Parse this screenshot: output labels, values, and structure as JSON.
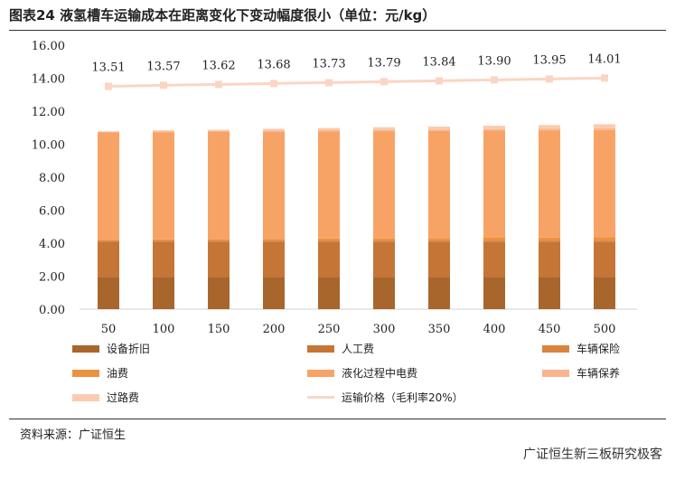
{
  "title": "图表24 液氢槽车运输成本在距离变化下变动幅度很小（单位：元/kg）",
  "source": "资料来源：广证恒生",
  "watermark": "广证恒生新三板研究极客",
  "chart_data": {
    "type": "stacked-bar+line",
    "categories": [
      "50",
      "100",
      "150",
      "200",
      "250",
      "300",
      "350",
      "400",
      "450",
      "500"
    ],
    "ylim": [
      0,
      16
    ],
    "yticks": [
      "0.00",
      "2.00",
      "4.00",
      "6.00",
      "8.00",
      "10.00",
      "12.00",
      "14.00",
      "16.00"
    ],
    "legend_position": "bottom",
    "series": [
      {
        "name": "设备折旧",
        "type": "bar",
        "color": "#A9662C",
        "values": [
          1.95,
          1.95,
          1.95,
          1.95,
          1.95,
          1.95,
          1.95,
          1.95,
          1.95,
          1.95
        ]
      },
      {
        "name": "人工费",
        "type": "bar",
        "color": "#C57535",
        "values": [
          2.15,
          2.15,
          2.15,
          2.15,
          2.15,
          2.15,
          2.15,
          2.15,
          2.15,
          2.15
        ]
      },
      {
        "name": "车辆保险",
        "type": "bar",
        "color": "#D9843E",
        "values": [
          0.06,
          0.06,
          0.06,
          0.06,
          0.06,
          0.06,
          0.06,
          0.06,
          0.06,
          0.06
        ]
      },
      {
        "name": "油费",
        "type": "bar",
        "color": "#EE9240",
        "values": [
          0.05,
          0.07,
          0.08,
          0.1,
          0.12,
          0.13,
          0.15,
          0.17,
          0.18,
          0.2
        ]
      },
      {
        "name": "液化过程中电费",
        "type": "bar",
        "color": "#F8A366",
        "values": [
          6.5,
          6.5,
          6.5,
          6.5,
          6.5,
          6.5,
          6.5,
          6.5,
          6.5,
          6.5
        ]
      },
      {
        "name": "车辆保养",
        "type": "bar",
        "color": "#F9B48E",
        "values": [
          0.05,
          0.06,
          0.06,
          0.07,
          0.07,
          0.08,
          0.08,
          0.09,
          0.09,
          0.1
        ]
      },
      {
        "name": "过路费",
        "type": "bar",
        "color": "#FBCBB0",
        "values": [
          0.02,
          0.05,
          0.08,
          0.1,
          0.13,
          0.16,
          0.18,
          0.2,
          0.23,
          0.25
        ]
      },
      {
        "name": "运输价格（毛利率20%）",
        "type": "line",
        "color": "#FBD5C4",
        "values": [
          13.51,
          13.57,
          13.62,
          13.68,
          13.73,
          13.79,
          13.84,
          13.9,
          13.95,
          14.01
        ],
        "labels": [
          "13.51",
          "13.57",
          "13.62",
          "13.68",
          "13.73",
          "13.79",
          "13.84",
          "13.90",
          "13.95",
          "14.01"
        ]
      }
    ]
  }
}
